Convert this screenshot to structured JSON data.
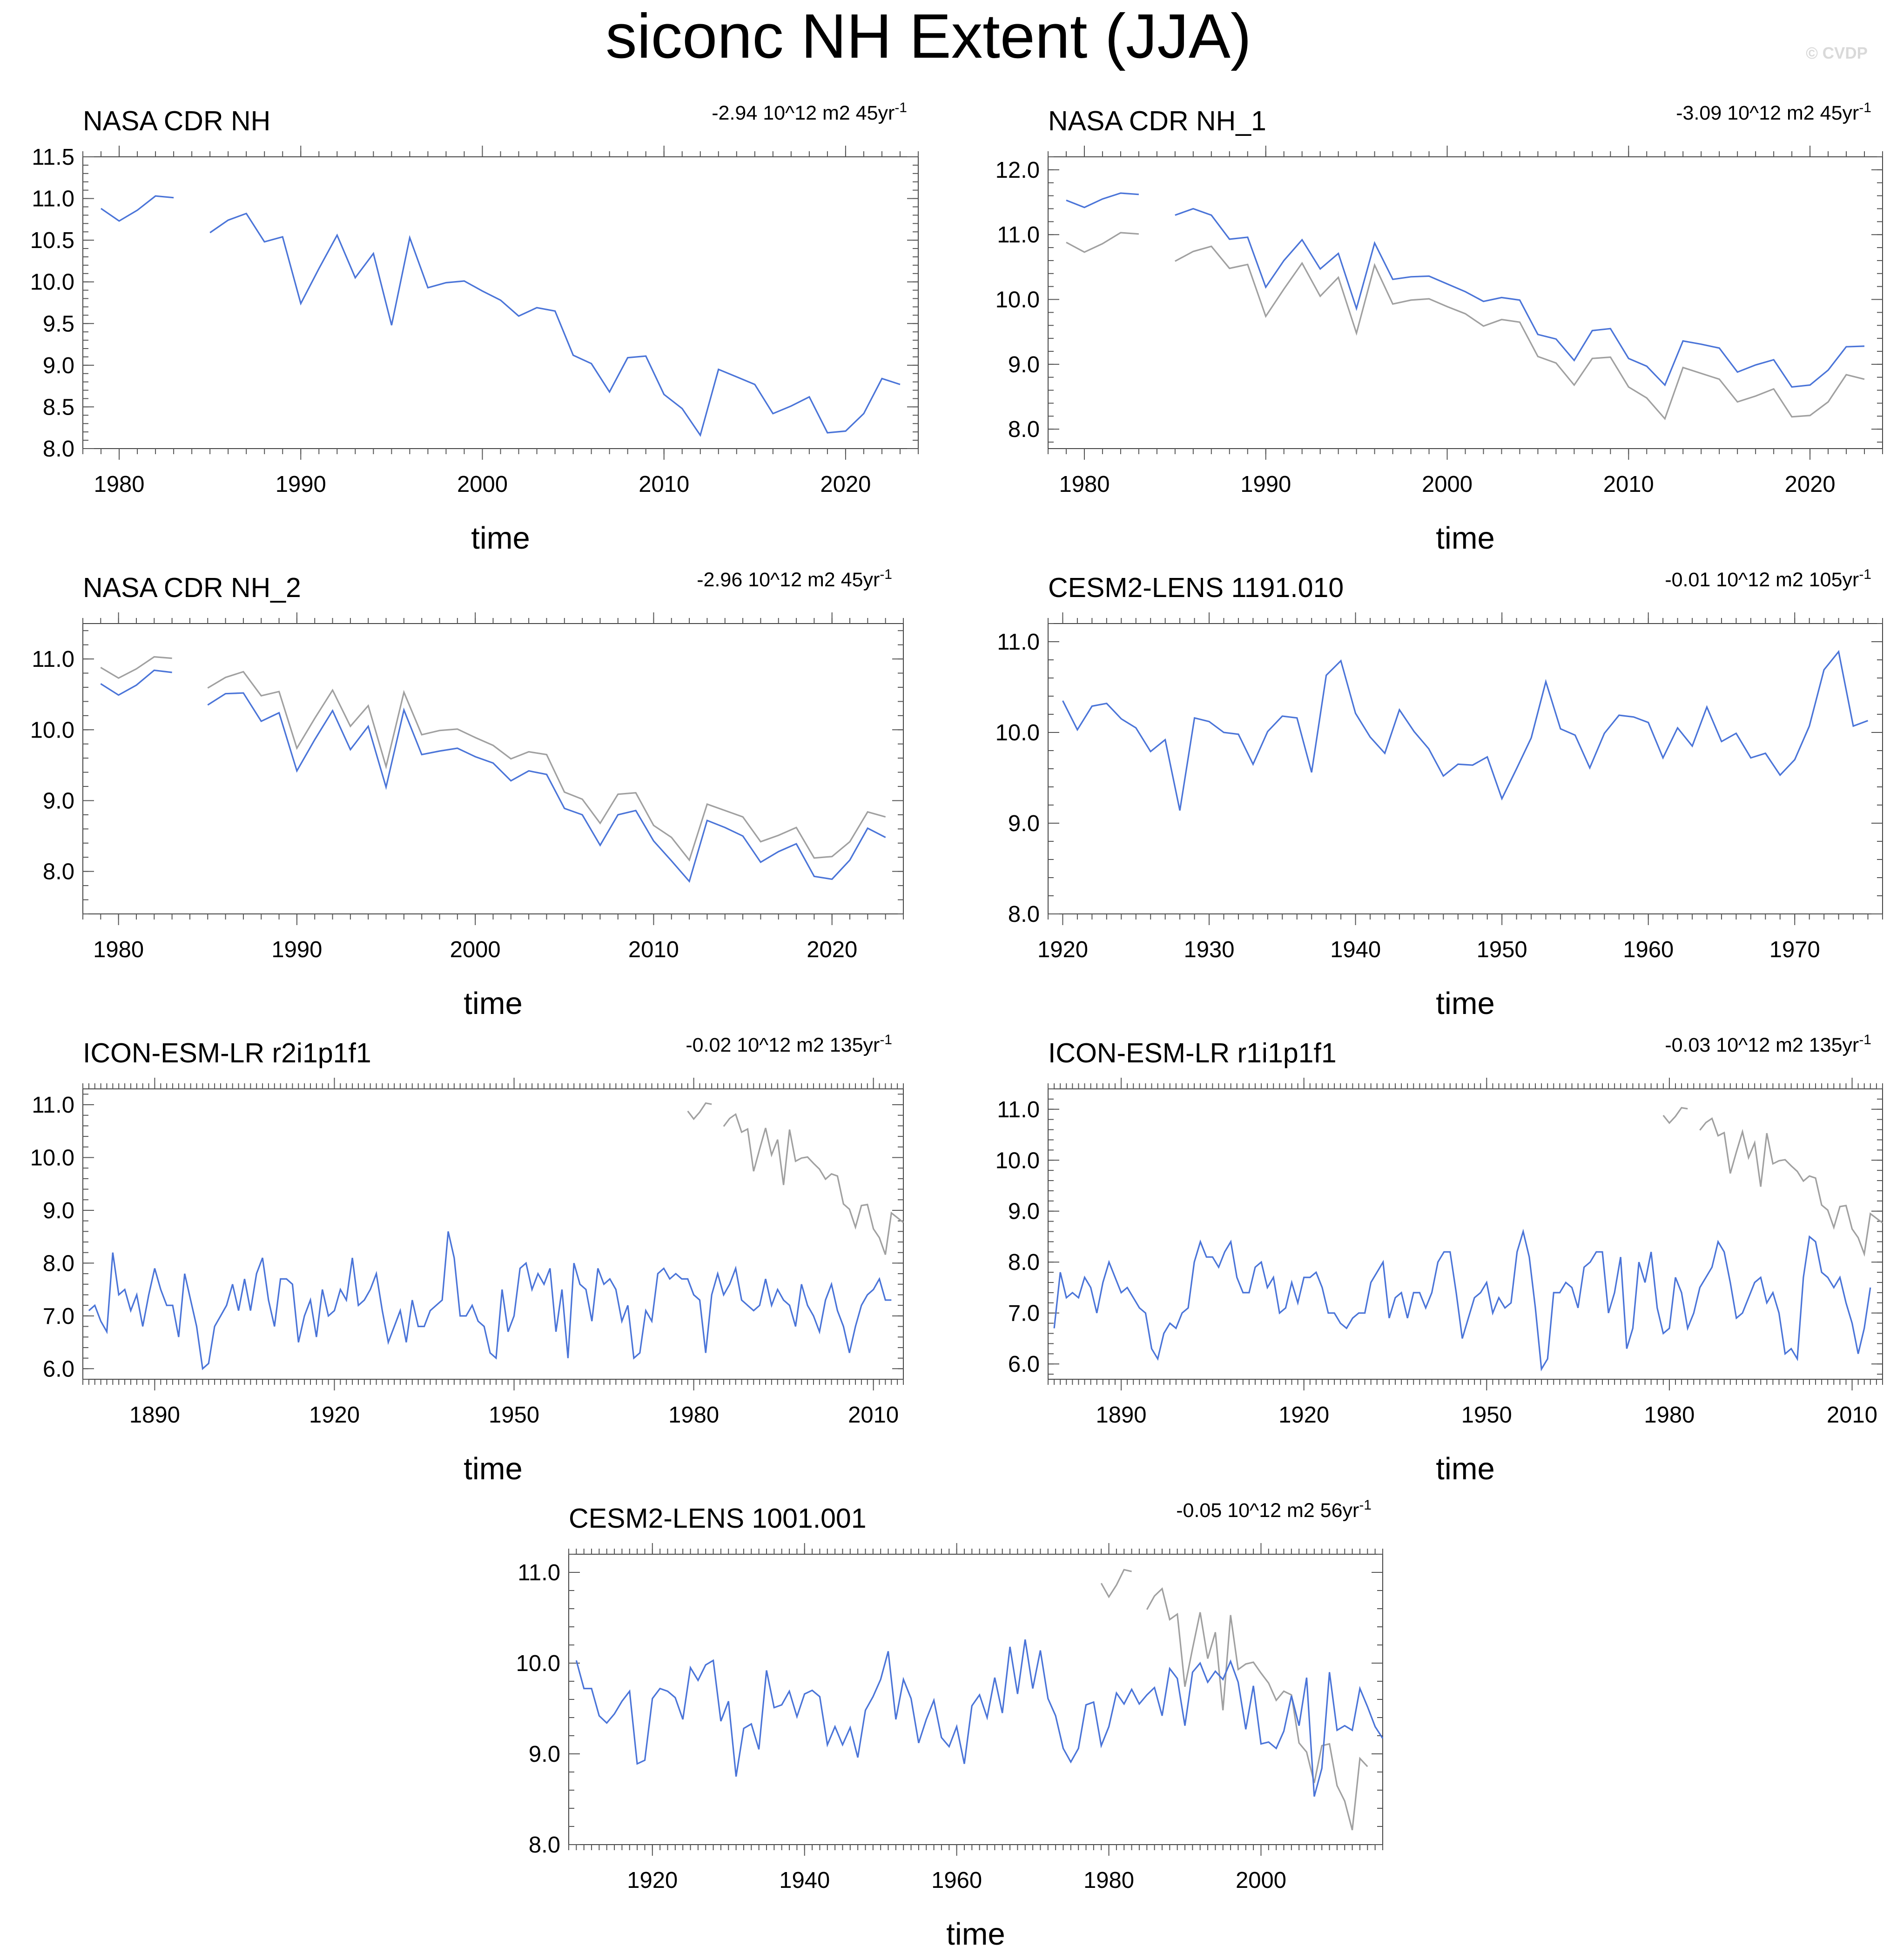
{
  "page": {
    "title": "siconc NH Extent (JJA)",
    "watermark": "© CVDP"
  },
  "colors": {
    "model": "#4a74d8",
    "observation": "#a0a0a0"
  },
  "chart_data": [
    {
      "type": "line",
      "title": "NASA CDR NH",
      "trend": "-2.94 10^12 m2 45yr",
      "trend_sup": "-1",
      "xlabel": "time",
      "ylabel": "",
      "xlim": [
        1978,
        2024
      ],
      "ylim": [
        8.0,
        11.5
      ],
      "xticks": [
        1980,
        1990,
        2000,
        2010,
        2020
      ],
      "yticks": [
        8.0,
        8.5,
        9.0,
        9.5,
        10.0,
        10.5,
        11.0,
        11.5
      ],
      "series": [
        {
          "name": "NASA CDR NH",
          "role": "model",
          "x_start": 1979,
          "values": [
            10.88,
            10.73,
            10.86,
            11.03,
            11.01,
            null,
            10.59,
            10.74,
            10.82,
            10.48,
            10.54,
            9.74,
            10.16,
            10.56,
            10.05,
            10.34,
            9.48,
            10.53,
            9.93,
            9.99,
            10.01,
            9.89,
            9.78,
            9.59,
            9.69,
            9.65,
            9.12,
            9.02,
            8.68,
            9.09,
            9.11,
            8.65,
            8.48,
            8.16,
            8.95,
            8.86,
            8.77,
            8.42,
            8.51,
            8.62,
            8.19,
            8.21,
            8.42,
            8.84,
            8.77
          ]
        }
      ]
    },
    {
      "type": "line",
      "title": "NASA CDR NH_1",
      "trend": "-3.09 10^12 m2 45yr",
      "trend_sup": "-1",
      "xlabel": "time",
      "ylabel": "",
      "xlim": [
        1978,
        2024
      ],
      "ylim": [
        7.7,
        12.2
      ],
      "xticks": [
        1980,
        1990,
        2000,
        2010,
        2020
      ],
      "yticks": [
        8.0,
        9.0,
        10.0,
        11.0,
        12.0
      ],
      "series": [
        {
          "name": "NASA CDR NH (obs)",
          "role": "observation",
          "x_start": 1979,
          "values": [
            10.88,
            10.73,
            10.86,
            11.03,
            11.01,
            null,
            10.59,
            10.74,
            10.82,
            10.48,
            10.54,
            9.74,
            10.16,
            10.56,
            10.05,
            10.34,
            9.48,
            10.53,
            9.93,
            9.99,
            10.01,
            9.89,
            9.78,
            9.59,
            9.69,
            9.65,
            9.12,
            9.02,
            8.68,
            9.09,
            9.11,
            8.65,
            8.48,
            8.16,
            8.95,
            8.86,
            8.77,
            8.42,
            8.51,
            8.62,
            8.19,
            8.21,
            8.42,
            8.84,
            8.77
          ]
        },
        {
          "name": "NASA CDR NH_1",
          "role": "model",
          "x_start": 1979,
          "values": [
            11.53,
            11.42,
            11.55,
            11.64,
            11.62,
            null,
            11.3,
            11.4,
            11.3,
            10.93,
            10.96,
            10.19,
            10.6,
            10.92,
            10.47,
            10.71,
            9.86,
            10.87,
            10.31,
            10.35,
            10.36,
            10.24,
            10.12,
            9.97,
            10.03,
            9.99,
            9.46,
            9.39,
            9.06,
            9.52,
            9.55,
            9.09,
            8.97,
            8.68,
            9.36,
            9.31,
            9.25,
            8.88,
            8.99,
            9.07,
            8.65,
            8.68,
            8.91,
            9.27,
            9.28
          ]
        }
      ]
    },
    {
      "type": "line",
      "title": "NASA CDR NH_2",
      "trend": "-2.96 10^12 m2 45yr",
      "trend_sup": "-1",
      "xlabel": "time",
      "ylabel": "",
      "xlim": [
        1978,
        2024
      ],
      "ylim": [
        7.4,
        11.5
      ],
      "xticks": [
        1980,
        1990,
        2000,
        2010,
        2020
      ],
      "yticks": [
        8.0,
        9.0,
        10.0,
        11.0
      ],
      "series": [
        {
          "name": "NASA CDR NH (obs)",
          "role": "observation",
          "x_start": 1979,
          "values": [
            10.88,
            10.73,
            10.86,
            11.03,
            11.01,
            null,
            10.59,
            10.74,
            10.82,
            10.48,
            10.54,
            9.74,
            10.16,
            10.56,
            10.05,
            10.34,
            9.48,
            10.53,
            9.93,
            9.99,
            10.01,
            9.89,
            9.78,
            9.59,
            9.69,
            9.65,
            9.12,
            9.02,
            8.68,
            9.09,
            9.11,
            8.65,
            8.48,
            8.16,
            8.95,
            8.86,
            8.77,
            8.42,
            8.51,
            8.62,
            8.19,
            8.21,
            8.42,
            8.84,
            8.77
          ]
        },
        {
          "name": "NASA CDR NH_2",
          "role": "model",
          "x_start": 1979,
          "values": [
            10.65,
            10.49,
            10.63,
            10.84,
            10.81,
            null,
            10.35,
            10.51,
            10.52,
            10.12,
            10.24,
            9.42,
            9.86,
            10.27,
            9.72,
            10.05,
            9.19,
            10.28,
            9.65,
            9.7,
            9.74,
            9.62,
            9.53,
            9.28,
            9.42,
            9.37,
            8.89,
            8.8,
            8.37,
            8.8,
            8.86,
            8.43,
            8.15,
            7.86,
            8.72,
            8.62,
            8.5,
            8.13,
            8.28,
            8.39,
            7.93,
            7.89,
            8.16,
            8.61,
            8.48
          ]
        }
      ]
    },
    {
      "type": "line",
      "title": "CESM2-LENS 1191.010",
      "trend": "-0.01 10^12 m2 105yr",
      "trend_sup": "-1",
      "xlabel": "time",
      "ylabel": "",
      "xlim": [
        1919,
        1976
      ],
      "ylim": [
        8.0,
        11.2
      ],
      "xticks": [
        1920,
        1930,
        1940,
        1950,
        1960,
        1970
      ],
      "yticks": [
        8.0,
        9.0,
        10.0,
        11.0
      ],
      "series": [
        {
          "name": "CESM2-LENS 1191.010",
          "role": "model",
          "x_start": 1920,
          "values": [
            10.35,
            10.03,
            10.29,
            10.32,
            10.15,
            10.05,
            9.79,
            9.92,
            9.14,
            10.16,
            10.12,
            10.0,
            9.98,
            9.65,
            10.01,
            10.18,
            10.16,
            9.56,
            10.63,
            10.79,
            10.21,
            9.95,
            9.77,
            10.25,
            10.01,
            9.82,
            9.52,
            9.65,
            9.64,
            9.73,
            9.27,
            9.6,
            9.94,
            10.56,
            10.04,
            9.97,
            9.61,
            9.99,
            10.19,
            10.17,
            10.11,
            9.72,
            10.05,
            9.85,
            10.28,
            9.9,
            9.99,
            9.72,
            9.77,
            9.53,
            9.7,
            10.07,
            10.69,
            10.89,
            10.07,
            10.13
          ]
        }
      ]
    },
    {
      "type": "line",
      "title": "ICON-ESM-LR r2i1p1f1",
      "trend": "-0.02 10^12 m2 135yr",
      "trend_sup": "-1",
      "xlabel": "time",
      "ylabel": "",
      "xlim": [
        1878,
        2015
      ],
      "ylim": [
        5.8,
        11.3
      ],
      "xticks": [
        1890,
        1920,
        1950,
        1980,
        2010
      ],
      "yticks": [
        6.0,
        7.0,
        8.0,
        9.0,
        10.0,
        11.0
      ],
      "series": [
        {
          "name": "NASA CDR NH (obs)",
          "role": "observation",
          "x_start": 1979,
          "values": [
            10.88,
            10.73,
            10.86,
            11.03,
            11.01,
            null,
            10.59,
            10.74,
            10.82,
            10.48,
            10.54,
            9.74,
            10.16,
            10.56,
            10.05,
            10.34,
            9.48,
            10.53,
            9.93,
            9.99,
            10.01,
            9.89,
            9.78,
            9.59,
            9.69,
            9.65,
            9.12,
            9.02,
            8.68,
            9.09,
            9.11,
            8.65,
            8.48,
            8.16,
            8.95,
            8.86,
            8.77
          ]
        },
        {
          "name": "ICON-ESM-LR r2i1p1f1",
          "role": "model",
          "x_start": 1879,
          "values": [
            7.1,
            7.2,
            6.9,
            6.7,
            8.2,
            7.4,
            7.5,
            7.1,
            7.4,
            6.8,
            7.4,
            7.9,
            7.5,
            7.2,
            7.2,
            6.6,
            7.8,
            7.3,
            6.8,
            6.0,
            6.1,
            6.8,
            7.0,
            7.2,
            7.6,
            7.1,
            7.7,
            7.1,
            7.8,
            8.1,
            7.3,
            6.8,
            7.7,
            7.7,
            7.6,
            6.5,
            7.0,
            7.3,
            6.6,
            7.5,
            7.0,
            7.1,
            7.5,
            7.3,
            8.1,
            7.2,
            7.3,
            7.5,
            7.8,
            7.1,
            6.5,
            6.8,
            7.1,
            6.5,
            7.3,
            6.8,
            6.8,
            7.1,
            7.2,
            7.3,
            8.6,
            8.1,
            7.0,
            7.0,
            7.2,
            6.9,
            6.8,
            6.3,
            6.2,
            7.5,
            6.7,
            7.0,
            7.9,
            8.0,
            7.5,
            7.8,
            7.6,
            7.9,
            6.7,
            7.5,
            6.2,
            8.0,
            7.6,
            7.5,
            6.9,
            7.9,
            7.6,
            7.7,
            7.5,
            6.9,
            7.2,
            6.2,
            6.3,
            7.1,
            6.9,
            7.8,
            7.9,
            7.7,
            7.8,
            7.7,
            7.7,
            7.4,
            7.3,
            6.3,
            7.4,
            7.8,
            7.4,
            7.6,
            7.9,
            7.3,
            7.2,
            7.1,
            7.2,
            7.7,
            7.2,
            7.5,
            7.3,
            7.2,
            6.8,
            7.6,
            7.2,
            7.0,
            6.7,
            7.3,
            7.6,
            7.1,
            6.8,
            6.3,
            6.8,
            7.2,
            7.4,
            7.5,
            7.7,
            7.3,
            7.3
          ]
        }
      ]
    },
    {
      "type": "line",
      "title": "ICON-ESM-LR r1i1p1f1",
      "trend": "-0.03 10^12 m2 135yr",
      "trend_sup": "-1",
      "xlabel": "time",
      "ylabel": "",
      "xlim": [
        1878,
        2015
      ],
      "ylim": [
        5.7,
        11.4
      ],
      "xticks": [
        1890,
        1920,
        1950,
        1980,
        2010
      ],
      "yticks": [
        6.0,
        7.0,
        8.0,
        9.0,
        10.0,
        11.0
      ],
      "series": [
        {
          "name": "NASA CDR NH (obs)",
          "role": "observation",
          "x_start": 1979,
          "values": [
            10.88,
            10.73,
            10.86,
            11.03,
            11.01,
            null,
            10.59,
            10.74,
            10.82,
            10.48,
            10.54,
            9.74,
            10.16,
            10.56,
            10.05,
            10.34,
            9.48,
            10.53,
            9.93,
            9.99,
            10.01,
            9.89,
            9.78,
            9.59,
            9.69,
            9.65,
            9.12,
            9.02,
            8.68,
            9.09,
            9.11,
            8.65,
            8.48,
            8.16,
            8.95,
            8.86,
            8.77
          ]
        },
        {
          "name": "ICON-ESM-LR r1i1p1f1",
          "role": "model",
          "x_start": 1879,
          "values": [
            6.7,
            7.8,
            7.3,
            7.4,
            7.3,
            7.7,
            7.5,
            7.0,
            7.6,
            8.0,
            7.7,
            7.4,
            7.5,
            7.3,
            7.1,
            7.0,
            6.3,
            6.1,
            6.6,
            6.8,
            6.7,
            7.0,
            7.1,
            8.0,
            8.4,
            8.1,
            8.1,
            7.9,
            8.2,
            8.4,
            7.7,
            7.4,
            7.4,
            7.9,
            8.0,
            7.5,
            7.7,
            7.0,
            7.1,
            7.6,
            7.2,
            7.7,
            7.7,
            7.8,
            7.5,
            7.0,
            7.0,
            6.8,
            6.7,
            6.9,
            7.0,
            7.0,
            7.6,
            7.8,
            8.0,
            6.9,
            7.3,
            7.4,
            6.9,
            7.4,
            7.4,
            7.1,
            7.4,
            8.0,
            8.2,
            8.2,
            7.4,
            6.5,
            6.9,
            7.3,
            7.4,
            7.6,
            7.0,
            7.3,
            7.1,
            7.2,
            8.2,
            8.6,
            8.1,
            7.1,
            5.9,
            6.1,
            7.4,
            7.4,
            7.6,
            7.5,
            7.1,
            7.9,
            8.0,
            8.2,
            8.2,
            7.0,
            7.4,
            8.1,
            6.3,
            6.7,
            8.0,
            7.6,
            8.2,
            7.1,
            6.6,
            6.7,
            7.7,
            7.4,
            6.7,
            7.0,
            7.5,
            7.7,
            7.9,
            8.4,
            8.2,
            7.6,
            6.9,
            7.0,
            7.3,
            7.6,
            7.7,
            7.2,
            7.4,
            7.0,
            6.2,
            6.3,
            6.1,
            7.7,
            8.5,
            8.4,
            7.8,
            7.7,
            7.5,
            7.7,
            7.2,
            6.8,
            6.2,
            6.7,
            7.5
          ]
        }
      ]
    },
    {
      "type": "line",
      "title": "CESM2-LENS 1001.001",
      "trend": "-0.05 10^12 m2 56yr",
      "trend_sup": "-1",
      "xlabel": "time",
      "ylabel": "",
      "xlim": [
        1909,
        2016
      ],
      "ylim": [
        8.0,
        11.2
      ],
      "xticks": [
        1920,
        1940,
        1960,
        1980,
        2000
      ],
      "yticks": [
        8.0,
        9.0,
        10.0,
        11.0
      ],
      "series": [
        {
          "name": "NASA CDR NH (obs)",
          "role": "observation",
          "x_start": 1979,
          "values": [
            10.88,
            10.73,
            10.86,
            11.03,
            11.01,
            null,
            10.59,
            10.74,
            10.82,
            10.48,
            10.54,
            9.74,
            10.16,
            10.56,
            10.05,
            10.34,
            9.48,
            10.53,
            9.93,
            9.99,
            10.01,
            9.89,
            9.78,
            9.59,
            9.69,
            9.65,
            9.12,
            9.02,
            8.68,
            9.09,
            9.11,
            8.65,
            8.48,
            8.16,
            8.95,
            8.86
          ]
        },
        {
          "name": "CESM2-LENS 1001.001",
          "role": "model",
          "x_start": 1910,
          "values": [
            10.03,
            9.72,
            9.72,
            9.42,
            9.34,
            9.44,
            9.58,
            9.69,
            8.89,
            8.93,
            9.61,
            9.72,
            9.69,
            9.62,
            9.38,
            9.95,
            9.81,
            9.98,
            10.03,
            9.36,
            9.58,
            8.75,
            9.28,
            9.33,
            9.05,
            9.92,
            9.51,
            9.54,
            9.69,
            9.41,
            9.66,
            9.7,
            9.63,
            9.1,
            9.3,
            9.1,
            9.29,
            8.96,
            9.48,
            9.63,
            9.82,
            10.13,
            9.38,
            9.82,
            9.61,
            9.12,
            9.38,
            9.59,
            9.18,
            9.08,
            9.3,
            8.89,
            9.53,
            9.65,
            9.4,
            9.84,
            9.45,
            10.18,
            9.66,
            10.26,
            9.72,
            10.14,
            9.61,
            9.42,
            9.06,
            8.91,
            9.06,
            9.54,
            9.57,
            9.09,
            9.3,
            9.67,
            9.55,
            9.71,
            9.55,
            9.65,
            9.73,
            9.42,
            9.94,
            9.83,
            9.31,
            9.9,
            10.0,
            9.79,
            9.91,
            9.82,
            10.02,
            9.79,
            9.27,
            9.75,
            9.11,
            9.13,
            9.06,
            9.25,
            9.64,
            9.31,
            9.84,
            8.53,
            8.84,
            9.9,
            9.26,
            9.31,
            9.26,
            9.72,
            9.52,
            9.3,
            9.17
          ]
        }
      ]
    }
  ]
}
